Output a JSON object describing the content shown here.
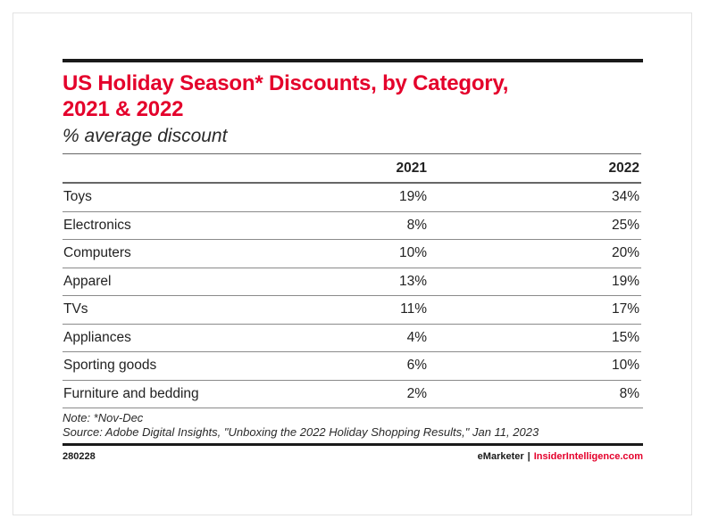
{
  "chart_data": {
    "type": "table",
    "title": "US Holiday Season* Discounts, by Category, 2021 & 2022",
    "subtitle": "% average discount",
    "columns": [
      "",
      "2021",
      "2022"
    ],
    "categories": [
      "Toys",
      "Electronics",
      "Computers",
      "Apparel",
      "TVs",
      "Appliances",
      "Sporting goods",
      "Furniture and bedding"
    ],
    "series": [
      {
        "name": "2021",
        "values": [
          19,
          8,
          10,
          13,
          11,
          4,
          6,
          2
        ]
      },
      {
        "name": "2022",
        "values": [
          34,
          25,
          20,
          19,
          17,
          15,
          10,
          8
        ]
      }
    ],
    "rows": [
      {
        "category": "Toys",
        "y2021": "19%",
        "y2022": "34%"
      },
      {
        "category": "Electronics",
        "y2021": "8%",
        "y2022": "25%"
      },
      {
        "category": "Computers",
        "y2021": "10%",
        "y2022": "20%"
      },
      {
        "category": "Apparel",
        "y2021": "13%",
        "y2022": "19%"
      },
      {
        "category": "TVs",
        "y2021": "11%",
        "y2022": "17%"
      },
      {
        "category": "Appliances",
        "y2021": "4%",
        "y2022": "15%"
      },
      {
        "category": "Sporting goods",
        "y2021": "6%",
        "y2022": "10%"
      },
      {
        "category": "Furniture and bedding",
        "y2021": "2%",
        "y2022": "8%"
      }
    ],
    "note": "Note: *Nov-Dec",
    "source": "Source: Adobe Digital Insights, \"Unboxing the 2022 Holiday Shopping Results,\" Jan 11, 2023"
  },
  "header": {
    "title_line1": "US Holiday Season* Discounts, by Category,",
    "title_line2": "2021 & 2022",
    "subtitle": "% average discount"
  },
  "table": {
    "col_2021": "2021",
    "col_2022": "2022"
  },
  "footer": {
    "chart_id": "280228",
    "brand_primary": "eMarketer",
    "brand_separator": "|",
    "brand_secondary": "InsiderIntelligence.com"
  },
  "colors": {
    "accent": "#e4002b",
    "text": "#222222",
    "rule": "#1a1a1a"
  }
}
